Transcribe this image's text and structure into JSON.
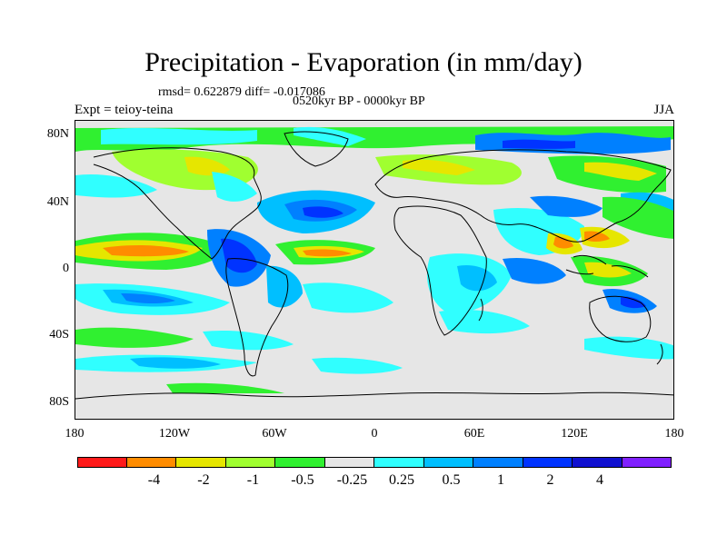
{
  "title": "Precipitation - Evaporation (in mm/day)",
  "stats": "rmsd= 0.622879  diff= -0.017086",
  "period": "0520kyr BP - 0000kyr BP",
  "experiment": "Expt = teioy-teina",
  "season": "JJA",
  "lat_labels": [
    "80N",
    "40N",
    "0",
    "40S",
    "80S"
  ],
  "lon_labels": [
    "180",
    "120W",
    "60W",
    "0",
    "60E",
    "120E",
    "180"
  ],
  "colorbar": {
    "colors": [
      "#ff1a1a",
      "#ff8c00",
      "#e6e600",
      "#a0ff30",
      "#30f030",
      "#e6e6e6",
      "#30ffff",
      "#00bfff",
      "#0080ff",
      "#0033ff",
      "#1010d0",
      "#8020ff"
    ],
    "labels": [
      "-4",
      "-2",
      "-1",
      "-0.5",
      "-0.25",
      "0.25",
      "0.5",
      "1",
      "2",
      "4"
    ]
  },
  "colors": {
    "ocean_neutral": "#e6e6e6",
    "coast": "#000000"
  }
}
